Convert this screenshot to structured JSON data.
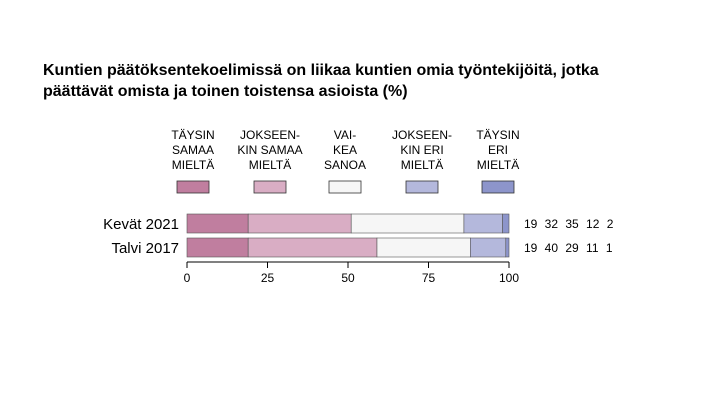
{
  "title_line1": "Kuntien päätöksentekoelimissä on liikaa kuntien omia työntekijöitä, jotka",
  "title_line2": "päättävät omista ja toinen toistensa asioista (%)",
  "chart_data": {
    "type": "bar",
    "orientation": "horizontal-stacked",
    "categories": [
      "Kevät 2021",
      "Talvi 2017"
    ],
    "series": [
      {
        "name": "TÄYSIN SAMAA MIELTÄ",
        "label_lines": [
          "TÄYSIN",
          "SAMAA",
          "MIELTÄ"
        ],
        "color": "#c07e9f",
        "values": [
          19,
          19
        ]
      },
      {
        "name": "JOKSEENKIN SAMAA MIELTÄ",
        "label_lines": [
          "JOKSEEN-",
          "KIN SAMAA",
          "MIELTÄ"
        ],
        "color": "#d9adc4",
        "values": [
          32,
          40
        ]
      },
      {
        "name": "VAIKEA SANOA",
        "label_lines": [
          "VAI-",
          "KEA",
          "SANOA"
        ],
        "color": "#f6f6f6",
        "values": [
          35,
          29
        ]
      },
      {
        "name": "JOKSEENKIN ERI MIELTÄ",
        "label_lines": [
          "JOKSEEN-",
          "KIN ERI",
          "MIELTÄ"
        ],
        "color": "#b4b8dc",
        "values": [
          12,
          11
        ]
      },
      {
        "name": "TÄYSIN ERI MIELTÄ",
        "label_lines": [
          "TÄYSIN",
          "ERI",
          "MIELTÄ"
        ],
        "color": "#8d95cb",
        "values": [
          2,
          1
        ]
      }
    ],
    "xlim": [
      0,
      100
    ],
    "xticks": [
      0,
      25,
      50,
      75,
      100
    ],
    "value_labels": [
      "19 32 35 12 2",
      "19 40 29 11 1"
    ],
    "legend_position": "top",
    "grid": false
  }
}
